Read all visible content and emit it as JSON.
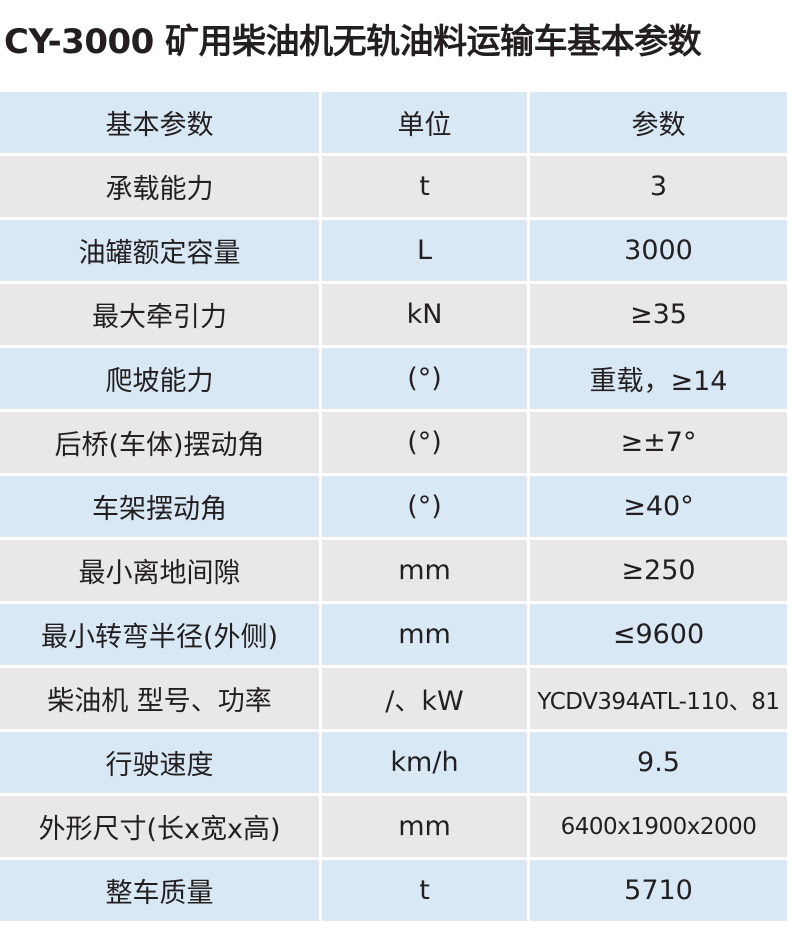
{
  "title": "CY-3000 矿用柴油机无轨油料运输车基本参数",
  "colors": {
    "row_blue": "#d9e8f5",
    "row_gray": "#e8e8e8"
  },
  "table": {
    "headers": [
      "基本参数",
      "单位",
      "参数"
    ],
    "rows": [
      [
        "承载能力",
        "t",
        "3"
      ],
      [
        "油罐额定容量",
        "L",
        "3000"
      ],
      [
        "最大牵引力",
        "kN",
        "≥35"
      ],
      [
        "爬坡能力",
        "(°)",
        "重载，≥14"
      ],
      [
        "后桥(车体)摆动角",
        "(°)",
        "≥±7°"
      ],
      [
        "车架摆动角",
        "(°)",
        "≥40°"
      ],
      [
        "最小离地间隙",
        "mm",
        "≥250"
      ],
      [
        "最小转弯半径(外侧)",
        "mm",
        "≤9600"
      ],
      [
        "柴油机 型号、功率",
        "/、kW",
        "YCDV394ATL-110、81"
      ],
      [
        "行驶速度",
        "km/h",
        "9.5"
      ],
      [
        "外形尺寸(长x宽x高)",
        "mm",
        "6400x1900x2000"
      ],
      [
        "整车质量",
        "t",
        "5710"
      ]
    ]
  }
}
